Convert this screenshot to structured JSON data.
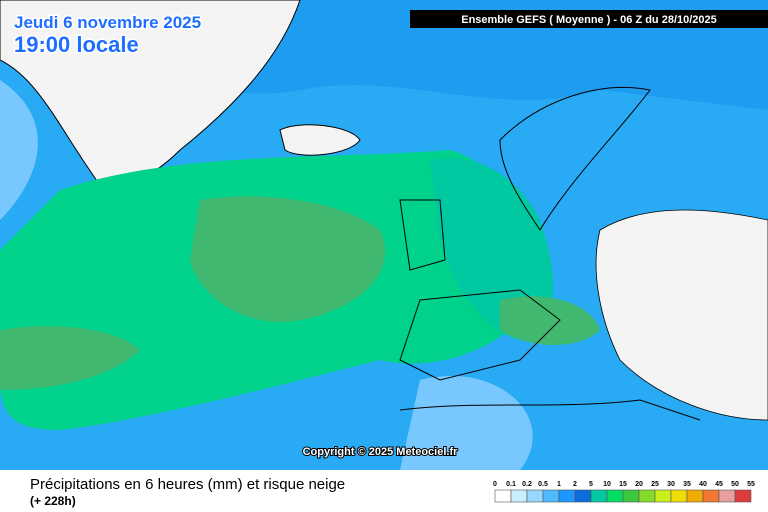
{
  "header": {
    "date": "Jeudi 6 novembre 2025",
    "time": "19:00 locale",
    "model": "Ensemble GEFS  ( Moyenne )  -  06 Z du 28/10/2025"
  },
  "copyright": "Copyright © 2025 Meteociel.fr",
  "footer": {
    "title": "Précipitations en 6 heures (mm) et risque neige",
    "lead": "(+ 228h)"
  },
  "legend": {
    "labels": [
      0,
      0.1,
      0.2,
      0.5,
      1,
      2,
      5,
      10,
      15,
      20,
      25,
      30,
      35,
      40,
      45,
      50,
      55
    ],
    "colors": [
      "#ffffff",
      "#c8eeff",
      "#96d7ff",
      "#50b9ff",
      "#1e96ff",
      "#0a6edc",
      "#00c8a0",
      "#00dc64",
      "#3cc83c",
      "#82dc28",
      "#c8f01e",
      "#f0dc00",
      "#f0aa00",
      "#f07832",
      "#e6a0a0",
      "#dc3c3c"
    ]
  }
}
